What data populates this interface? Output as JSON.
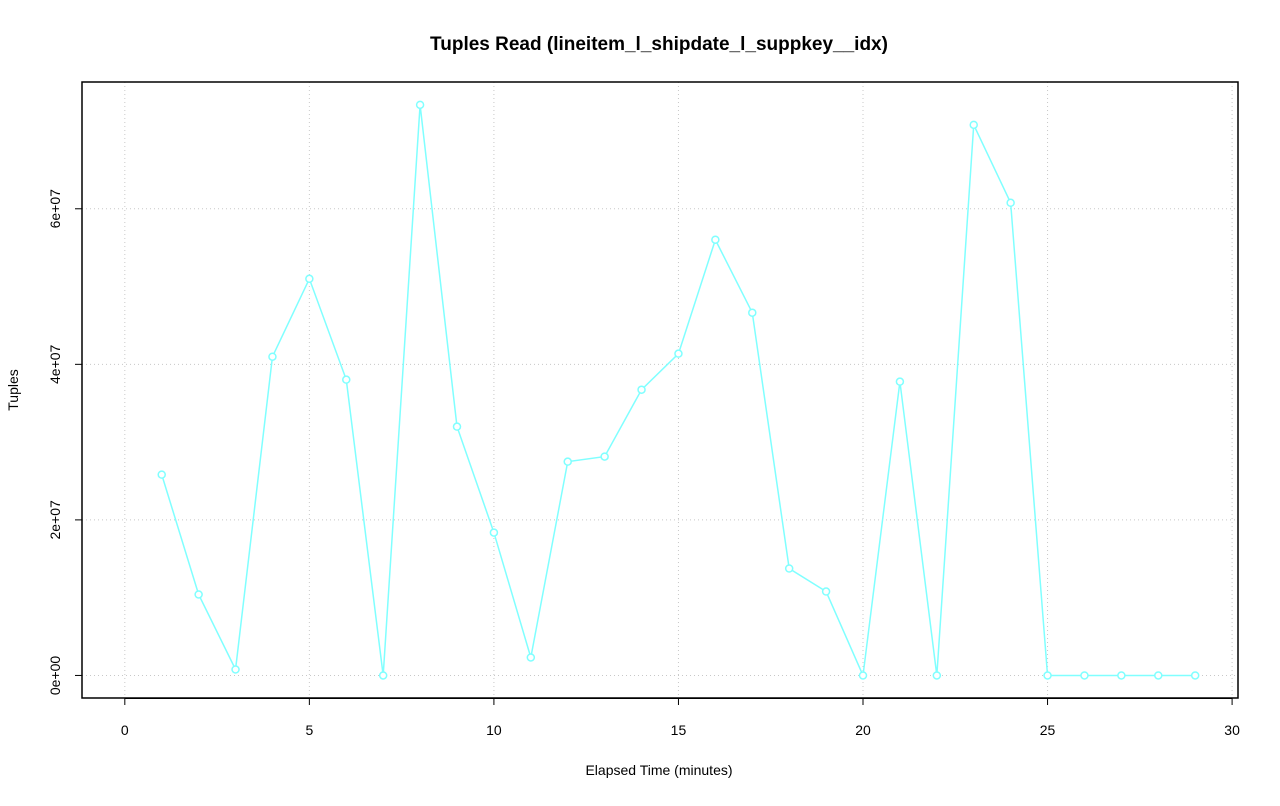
{
  "chart_data": {
    "type": "line",
    "title": "Tuples Read (lineitem_l_shipdate_l_suppkey__idx)",
    "xlabel": "Elapsed Time (minutes)",
    "ylabel": "Tuples",
    "x": [
      1,
      2,
      3,
      4,
      5,
      6,
      7,
      8,
      9,
      10,
      11,
      12,
      13,
      14,
      15,
      16,
      17,
      18,
      19,
      20,
      21,
      22,
      23,
      24,
      25,
      26,
      27,
      28,
      29
    ],
    "series": [
      {
        "name": "Tuples",
        "color": "#80ffff",
        "values": [
          25820000,
          10410000,
          770000,
          40980000,
          51000000,
          38030000,
          0,
          73360000,
          31990000,
          18370000,
          2310000,
          27490000,
          28140000,
          36740000,
          41370000,
          56020000,
          46640000,
          13750000,
          10790000,
          0,
          37770000,
          0,
          70790000,
          60770000,
          0,
          0,
          0,
          0,
          0
        ]
      }
    ],
    "xlim": [
      -1.16,
      30.16
    ],
    "xticks": [
      0,
      5,
      10,
      15,
      20,
      25,
      30
    ],
    "ylim": [
      -2900000,
      76300000
    ],
    "yticks": [
      {
        "value": 0,
        "label": "0e+00"
      },
      {
        "value": 20000000,
        "label": "2e+07"
      },
      {
        "value": 40000000,
        "label": "4e+07"
      },
      {
        "value": 60000000,
        "label": "6e+07"
      }
    ],
    "grid": true
  }
}
